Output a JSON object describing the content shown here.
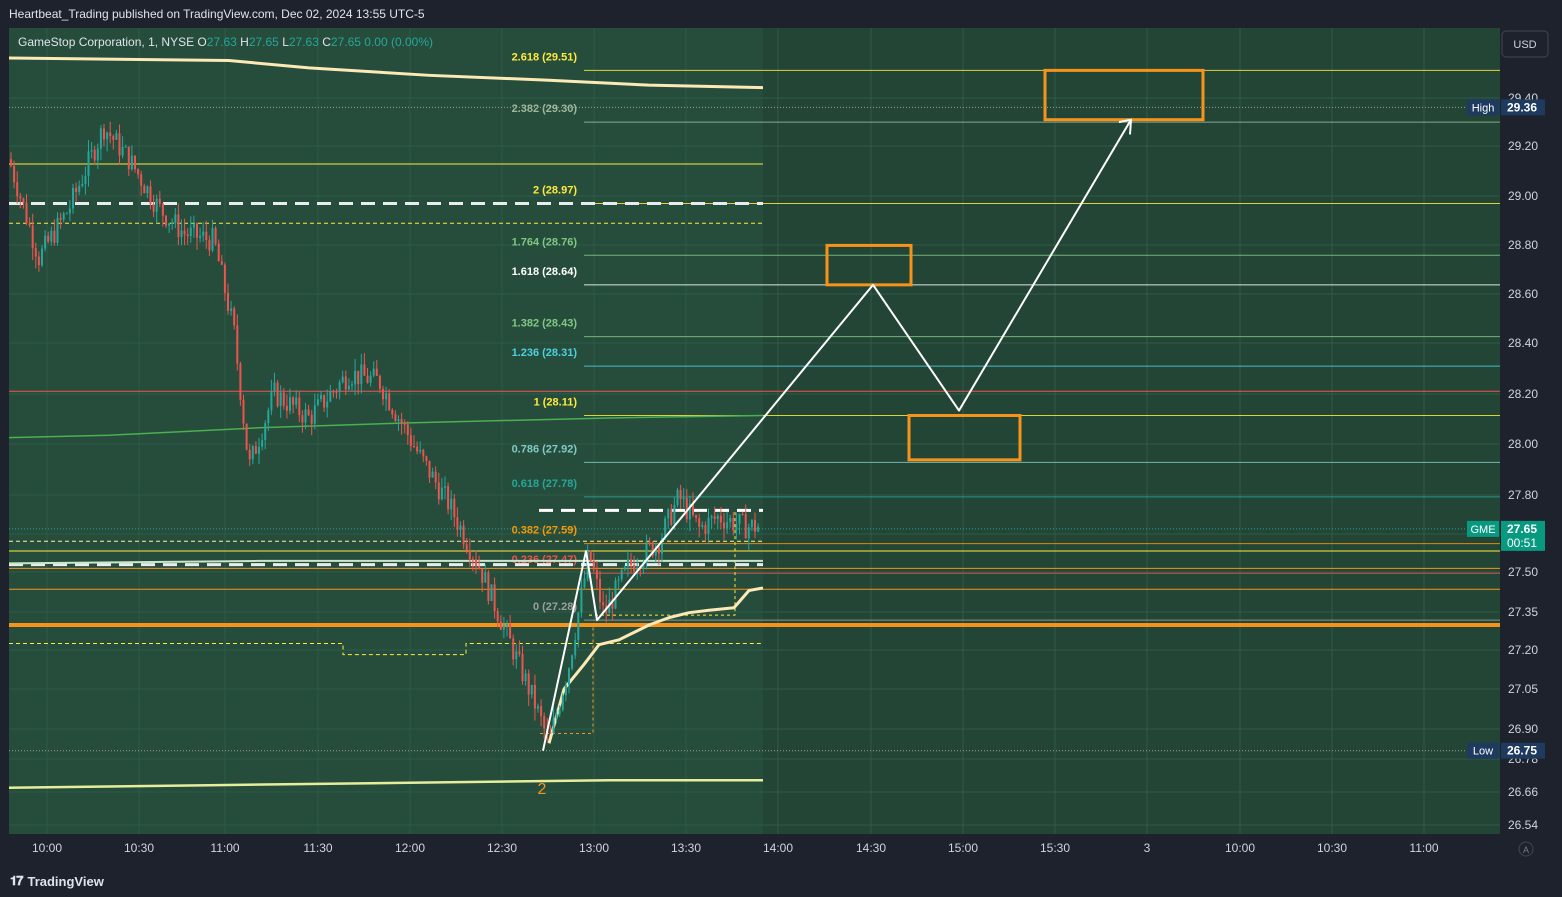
{
  "header": {
    "published_line": "Heartbeat_Trading published on TradingView.com, Dec 02, 2024 13:55 UTC-5"
  },
  "legend": {
    "symbol": "GameStop Corporation, 1, NYSE",
    "o_label": "O",
    "o_value": "27.63",
    "h_label": "H",
    "h_value": "27.65",
    "l_label": "L",
    "l_value": "27.63",
    "c_label": "C",
    "c_value": "27.65",
    "change": "0.00 (0.00%)"
  },
  "currency_button": "USD",
  "footer": {
    "logo_text": "TradingView",
    "auto_label": "A"
  },
  "colors": {
    "background": "#264d3c",
    "future_background": "#234536",
    "candle_up": "#26a69a",
    "candle_down": "#ef5350",
    "ma_light": "#fce9b6",
    "orange": "#f7931a",
    "projection": "#ffffff"
  },
  "chart_data": {
    "type": "candlestick",
    "title": "GameStop Corporation, 1, NYSE",
    "ylim": [
      26.5,
      29.6
    ],
    "y_ticks": [
      "29.40",
      "29.20",
      "29.00",
      "28.80",
      "28.60",
      "28.40",
      "28.20",
      "28.00",
      "27.80",
      "27.65",
      "27.50",
      "27.35",
      "27.20",
      "27.05",
      "26.90",
      "26.78",
      "26.66",
      "26.54"
    ],
    "x_ticks": [
      "10:00",
      "10:30",
      "11:00",
      "11:30",
      "12:00",
      "12:30",
      "13:00",
      "13:30",
      "14:00",
      "14:30",
      "15:00",
      "15:30",
      "3",
      "10:00",
      "10:30",
      "11:00"
    ],
    "price_badges": [
      {
        "label": "High",
        "value": "29.36"
      },
      {
        "label": "GME",
        "value": "27.65",
        "countdown": "00:51"
      },
      {
        "label": "Low",
        "value": "26.75"
      }
    ],
    "fib_levels": [
      {
        "label": "2.618 (29.51)",
        "value": 29.51,
        "color": "#ffeb3b"
      },
      {
        "label": "2.382 (29.30)",
        "value": 29.3,
        "color": "#9fb89a"
      },
      {
        "label": "2 (28.97)",
        "value": 28.97,
        "color": "#ffeb3b"
      },
      {
        "label": "1.764 (28.76)",
        "value": 28.76,
        "color": "#81c784"
      },
      {
        "label": "1.618 (28.64)",
        "value": 28.64,
        "color": "#ffffff"
      },
      {
        "label": "1.382 (28.43)",
        "value": 28.43,
        "color": "#81c784"
      },
      {
        "label": "1.236 (28.31)",
        "value": 28.31,
        "color": "#4dd0e1"
      },
      {
        "label": "1 (28.11)",
        "value": 28.11,
        "color": "#ffeb3b"
      },
      {
        "label": "0.786 (27.92)",
        "value": 27.92,
        "color": "#80cbc4"
      },
      {
        "label": "0.618 (27.78)",
        "value": 27.78,
        "color": "#26a69a"
      },
      {
        "label": "0.382 (27.59)",
        "value": 27.59,
        "color": "#ff9800"
      },
      {
        "label": "0.236 (27.47)",
        "value": 27.47,
        "color": "#ef5350"
      },
      {
        "label": "0 (27.28)",
        "value": 27.28,
        "color": "#9e9e9e"
      }
    ],
    "wave_label": "2",
    "annotations": [
      {
        "type": "target_box",
        "price_range": [
          29.31,
          29.51
        ]
      },
      {
        "type": "target_box",
        "price_range": [
          28.64,
          28.8
        ]
      },
      {
        "type": "target_box",
        "price_range": [
          27.93,
          28.11
        ]
      }
    ]
  }
}
